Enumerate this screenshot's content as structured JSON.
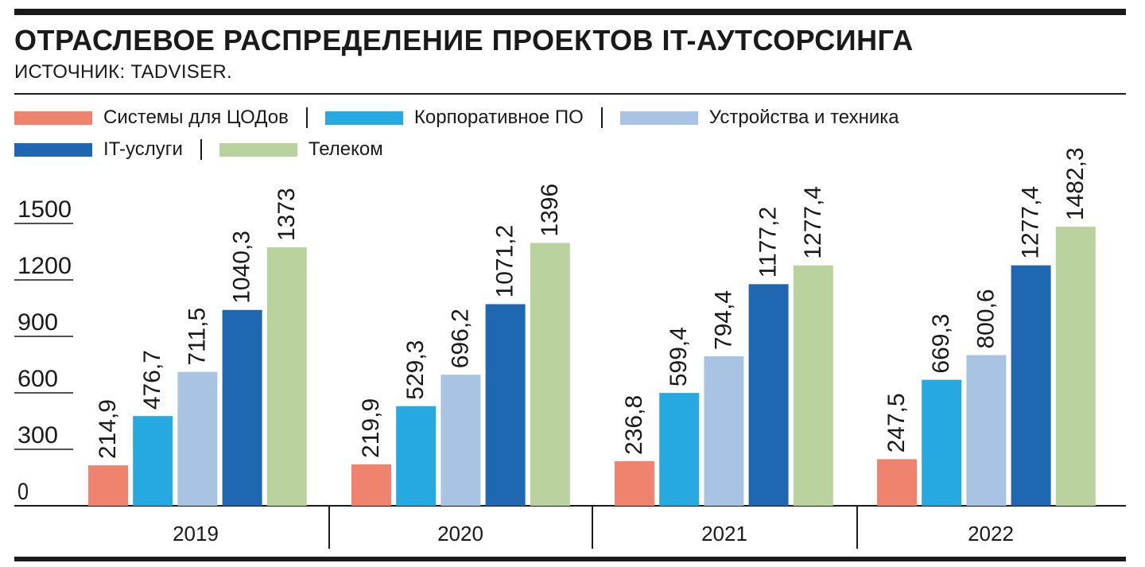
{
  "title": "ОТРАСЛЕВОЕ РАСПРЕДЕЛЕНИЕ ПРОЕКТОВ IT-АУТСОРСИНГА",
  "source": "ИСТОЧНИК: TADVISER.",
  "chart_data": {
    "type": "bar",
    "categories": [
      "2019",
      "2020",
      "2021",
      "2022"
    ],
    "series": [
      {
        "name": "Системы для ЦОДов",
        "color": "#f0836d",
        "values": [
          214.9,
          219.9,
          236.8,
          247.5
        ],
        "labels": [
          "214,9",
          "219,9",
          "236,8",
          "247,5"
        ]
      },
      {
        "name": "Корпоративное ПО",
        "color": "#25a9e0",
        "values": [
          476.7,
          529.3,
          599.4,
          669.3
        ],
        "labels": [
          "476,7",
          "529,3",
          "599,4",
          "669,3"
        ]
      },
      {
        "name": "Устройства и техника",
        "color": "#a9c4e2",
        "values": [
          711.5,
          696.2,
          794.4,
          800.6
        ],
        "labels": [
          "711,5",
          "696,2",
          "794,4",
          "800,6"
        ]
      },
      {
        "name": "IT-услуги",
        "color": "#1f67b1",
        "values": [
          1040.3,
          1071.2,
          1177.2,
          1277.4
        ],
        "labels": [
          "1040,3",
          "1071,2",
          "1177,2",
          "1277,4"
        ]
      },
      {
        "name": "Телеком",
        "color": "#b9d29e",
        "values": [
          1373,
          1396,
          1277.4,
          1482.3
        ],
        "labels": [
          "1373",
          "1396",
          "1277,4",
          "1482,3"
        ]
      }
    ],
    "yticks": [
      "0",
      "300",
      "600",
      "900",
      "1200",
      "1500"
    ],
    "ylim": [
      0,
      1500
    ],
    "legend_position": "top-left"
  }
}
